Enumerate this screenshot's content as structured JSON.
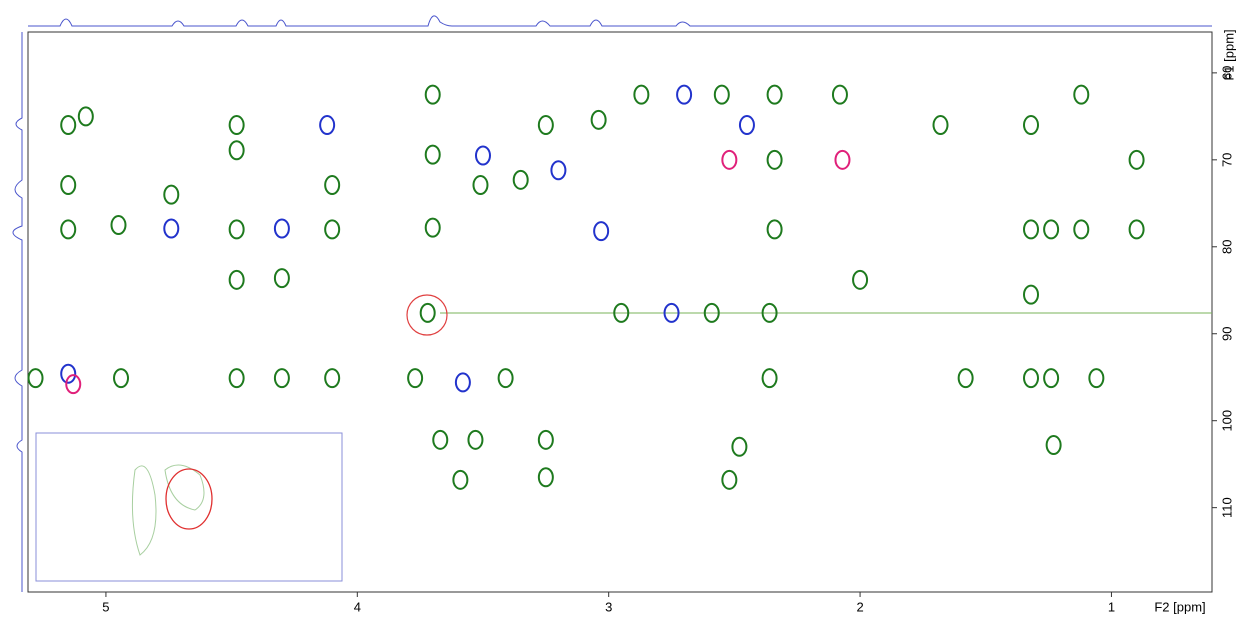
{
  "chart_data": {
    "type": "scatter",
    "xlabel": "F2 [ppm]",
    "ylabel": "F1 [ppm]",
    "xlim": [
      5.31,
      0.6
    ],
    "ylim": [
      55.3,
      119.7
    ],
    "xticks": [
      5,
      4,
      3,
      2,
      1
    ],
    "yticks": [
      60,
      70,
      80,
      90,
      100,
      110
    ],
    "series": [
      {
        "color": "#1e7a1e",
        "x": [
          5.15,
          5.15,
          5.15,
          5.08,
          4.95,
          4.74,
          4.48,
          4.48,
          4.48,
          4.48,
          4.3,
          4.1,
          4.1,
          3.7,
          3.7,
          3.7,
          3.51,
          3.35,
          3.25,
          3.04,
          2.87,
          2.55,
          2.34,
          2.34,
          2.34,
          2.08,
          2.0,
          1.68,
          1.32,
          1.32,
          1.32,
          1.24,
          1.12,
          1.12,
          0.9,
          0.9,
          5.28,
          4.94,
          4.48,
          4.3,
          4.1,
          3.77,
          3.41,
          2.36,
          1.58,
          1.32,
          1.24,
          1.06,
          3.67,
          3.53,
          3.25,
          3.25,
          3.59,
          2.48,
          1.23,
          2.52,
          3.72,
          2.95,
          2.59,
          2.36
        ],
        "values": [
          66,
          72.9,
          78,
          65,
          77.5,
          74,
          66,
          68.9,
          78,
          83.8,
          83.6,
          78,
          72.9,
          62.5,
          69.4,
          77.8,
          72.9,
          72.3,
          66,
          65.4,
          62.5,
          62.5,
          62.5,
          70,
          78,
          62.5,
          83.8,
          66,
          66,
          78,
          85.5,
          78,
          62.5,
          78,
          70,
          78,
          95.1,
          95.1,
          95.1,
          95.1,
          95.1,
          95.1,
          95.1,
          95.1,
          95.1,
          95.1,
          95.1,
          95.1,
          102.2,
          102.2,
          102.2,
          106.5,
          106.8,
          103,
          102.8,
          106.8,
          87.6,
          87.6,
          87.6,
          87.6
        ]
      },
      {
        "color": "#2233cc",
        "x": [
          4.74,
          4.3,
          4.12,
          3.5,
          3.2,
          3.03,
          2.7,
          2.45,
          5.15,
          3.58,
          2.75
        ],
        "values": [
          77.9,
          77.9,
          66,
          69.5,
          71.2,
          78.2,
          62.5,
          66,
          94.6,
          95.6,
          87.6
        ]
      },
      {
        "color": "#e0207a",
        "x": [
          2.52,
          2.07,
          5.13
        ],
        "values": [
          70,
          70,
          95.8
        ]
      }
    ]
  }
}
